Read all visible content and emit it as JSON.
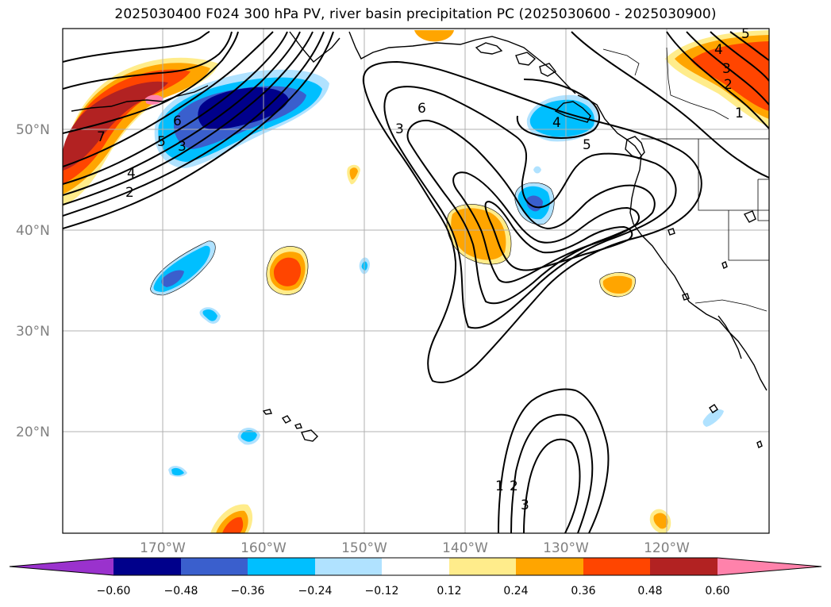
{
  "title": "2025030400 F024 300 hPa PV, river basin precipitation PC (2025030600 - 2025030900)",
  "lat_labels": [
    "50°N",
    "40°N",
    "30°N",
    "20°N"
  ],
  "lon_labels": [
    "170°W",
    "160°W",
    "150°W",
    "140°W",
    "130°W",
    "120°W"
  ],
  "colorbar": {
    "colors": [
      "#9a32cd",
      "#00008b",
      "#3a5fcd",
      "#00bfff",
      "#b0e2ff",
      "#ffffff",
      "#ffec8b",
      "#ffa500",
      "#ff4500",
      "#b22222",
      "#ff82ab"
    ],
    "tick_labels": [
      "−0.60",
      "−0.48",
      "−0.36",
      "−0.24",
      "−0.12",
      "0.12",
      "0.24",
      "0.36",
      "0.48",
      "0.60"
    ]
  },
  "pv_labels": [
    "7",
    "6",
    "5",
    "4",
    "3",
    "2",
    "3",
    "6",
    "4",
    "5",
    "5",
    "4",
    "3",
    "2",
    "1",
    "1",
    "2",
    "3"
  ]
}
